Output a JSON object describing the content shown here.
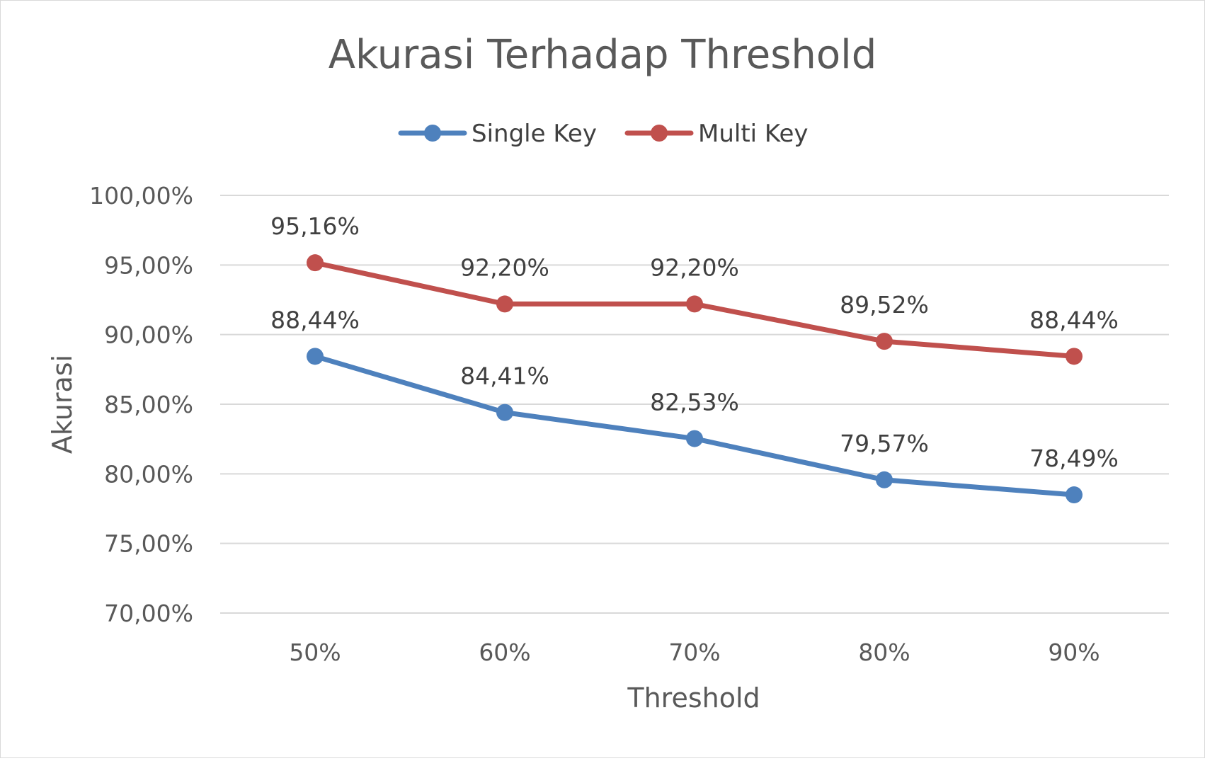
{
  "chart_data": {
    "type": "line",
    "title": "Akurasi Terhadap Threshold",
    "xlabel": "Threshold",
    "ylabel": "Akurasi",
    "categories": [
      "50%",
      "60%",
      "70%",
      "80%",
      "90%"
    ],
    "ylim": [
      70,
      100
    ],
    "yticks": [
      70,
      75,
      80,
      85,
      90,
      95,
      100
    ],
    "ytick_labels": [
      "70,00%",
      "75,00%",
      "80,00%",
      "85,00%",
      "90,00%",
      "95,00%",
      "100,00%"
    ],
    "grid": true,
    "legend_position": "top",
    "series": [
      {
        "name": "Single Key",
        "color": "#4e81bd",
        "values": [
          88.44,
          84.41,
          82.53,
          79.57,
          78.49
        ],
        "labels": [
          "88,44%",
          "84,41%",
          "82,53%",
          "79,57%",
          "78,49%"
        ]
      },
      {
        "name": "Multi Key",
        "color": "#c0504d",
        "values": [
          95.16,
          92.2,
          92.2,
          89.52,
          88.44
        ],
        "labels": [
          "95,16%",
          "92,20%",
          "92,20%",
          "89,52%",
          "88,44%"
        ]
      }
    ]
  }
}
